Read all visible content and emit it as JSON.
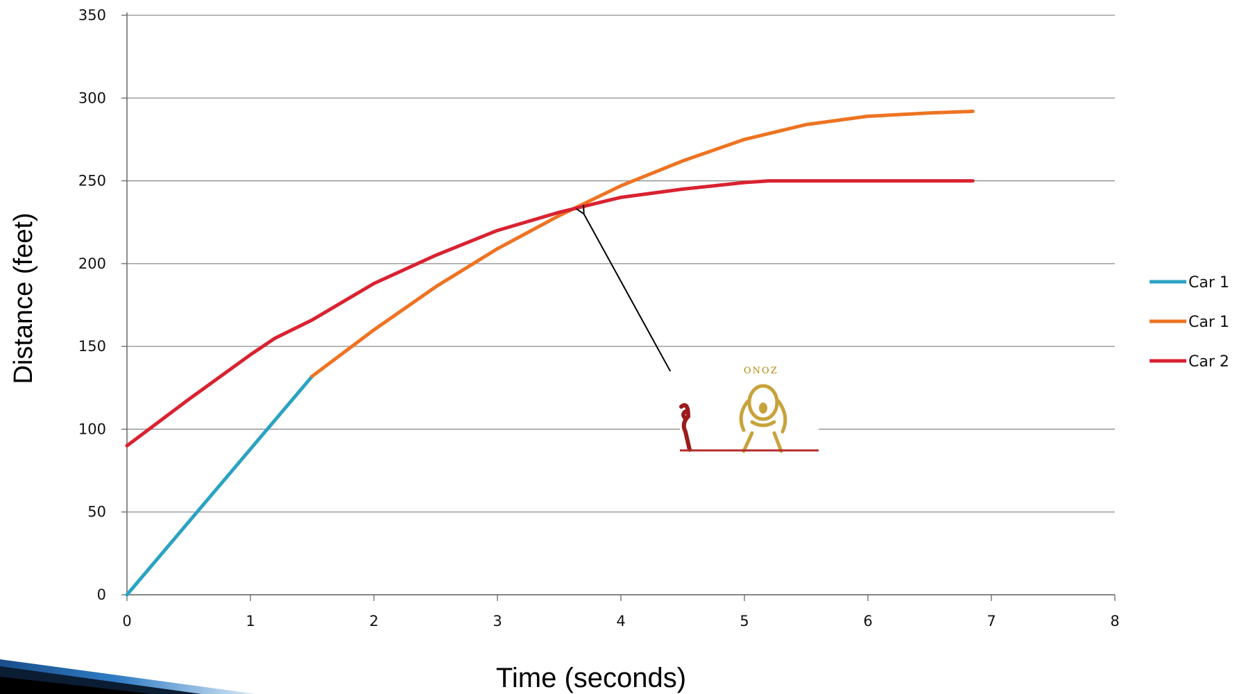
{
  "chart_data": {
    "type": "line",
    "title": "",
    "xlabel": "Time (seconds)",
    "ylabel": "Distance (feet)",
    "xlim": [
      0,
      8
    ],
    "ylim": [
      0,
      350
    ],
    "xticks": [
      "0",
      "1",
      "2",
      "3",
      "4",
      "5",
      "6",
      "7",
      "8"
    ],
    "yticks": [
      "0",
      "50",
      "100",
      "150",
      "200",
      "250",
      "300",
      "350"
    ],
    "grid": "horizontal",
    "legend_position": "right",
    "series": [
      {
        "name": "Car 1",
        "color": "#2ba3c2",
        "x": [
          0,
          1.5
        ],
        "y": [
          0,
          132
        ]
      },
      {
        "name": "Car 1",
        "color": "#ee7322",
        "x": [
          1.5,
          2,
          2.5,
          3,
          3.5,
          4,
          4.5,
          5,
          5.5,
          6,
          6.5,
          6.85
        ],
        "y": [
          132,
          160,
          186,
          209,
          229,
          247,
          262,
          275,
          284,
          289,
          291,
          292
        ]
      },
      {
        "name": "Car 2",
        "color": "#d92231",
        "x": [
          0,
          0.5,
          1,
          1.2,
          1.5,
          2,
          2.5,
          3,
          3.5,
          4,
          4.5,
          5,
          5.2,
          6,
          6.85
        ],
        "y": [
          90,
          118,
          145,
          155,
          166,
          188,
          205,
          220,
          231,
          240,
          245,
          249,
          250,
          250,
          250
        ]
      }
    ],
    "annotation": {
      "arrow_from": [
        4.4,
        135
      ],
      "arrow_to": [
        3.7,
        230
      ],
      "caption": "ONOZ"
    }
  }
}
